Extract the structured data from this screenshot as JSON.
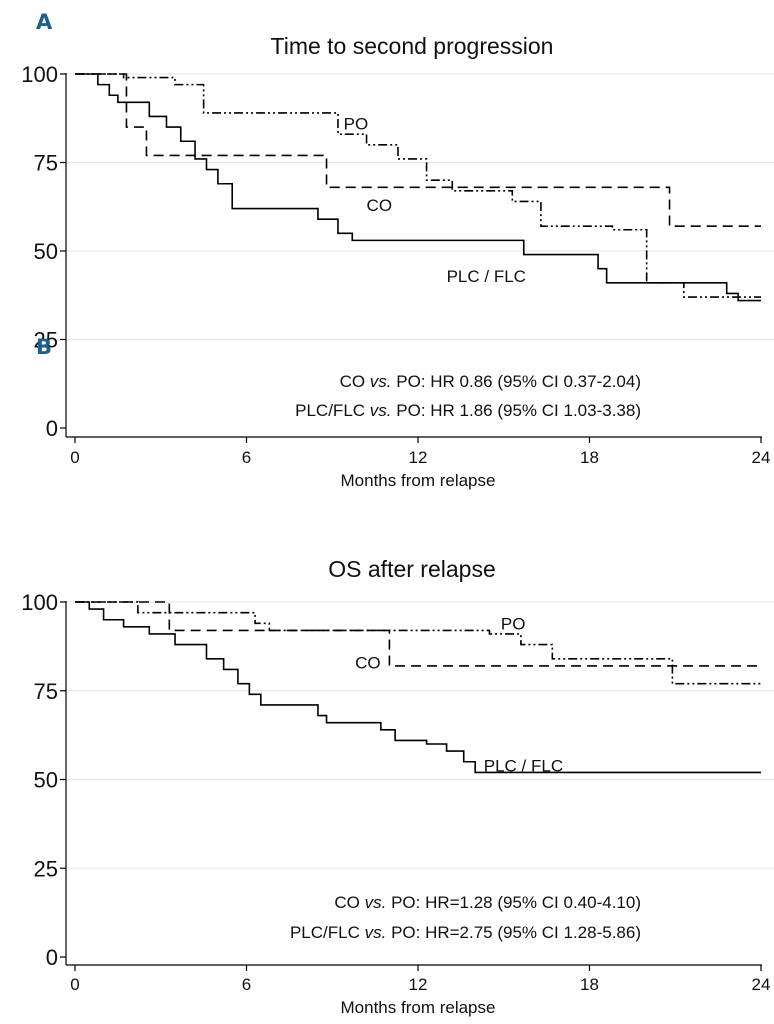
{
  "chart_data": [
    {
      "type": "line",
      "panel_label": "A",
      "title": "Time to second progression",
      "xlabel": "Months from relapse",
      "ylabel": "",
      "xlim": [
        0,
        24
      ],
      "ylim": [
        0,
        100
      ],
      "xticks": [
        0,
        6,
        12,
        18,
        24
      ],
      "yticks": [
        0,
        25,
        50,
        75,
        100
      ],
      "grid": true,
      "series": [
        {
          "name": "PO",
          "style": "dashdot",
          "x": [
            0,
            1.7,
            3.5,
            4.5,
            9.2,
            10.2,
            11.3,
            12.3,
            13.2,
            15.3,
            16.3,
            18.8,
            20.0,
            21.3,
            24
          ],
          "y": [
            100,
            99,
            97,
            89,
            83,
            80,
            76,
            70,
            67,
            64,
            57,
            56,
            41,
            37,
            37
          ]
        },
        {
          "name": "CO",
          "style": "dashed",
          "x": [
            0,
            1.8,
            2.5,
            8.8,
            20.8,
            24
          ],
          "y": [
            100,
            85,
            77,
            68,
            57,
            57
          ]
        },
        {
          "name": "PLC / FLC",
          "style": "solid",
          "x": [
            0,
            0.8,
            1.2,
            1.5,
            2.6,
            3.2,
            3.7,
            4.2,
            4.6,
            5.0,
            5.5,
            8.5,
            9.2,
            9.7,
            15.7,
            18.3,
            18.6,
            22.8,
            23.2,
            24
          ],
          "y": [
            100,
            97,
            94,
            92,
            88,
            85,
            81,
            76,
            73,
            69,
            62,
            59,
            55,
            53,
            49,
            45,
            41,
            38,
            36,
            36
          ]
        }
      ],
      "curve_labels": [
        {
          "series": "PO",
          "text": "PO",
          "x": 9.4,
          "y": 86
        },
        {
          "series": "CO",
          "text": "CO",
          "x": 10.2,
          "y": 63
        },
        {
          "series": "PLC / FLC",
          "text": "PLC / FLC",
          "x": 13.0,
          "y": 43
        }
      ],
      "annotations": [
        {
          "comparison_a": "CO",
          "vs": "vs.",
          "comparison_b": "PO",
          "stat": ": HR 0.86 (95% CI 0.37-2.04)"
        },
        {
          "comparison_a": "PLC/FLC",
          "vs": "vs.",
          "comparison_b": "PO",
          "stat": ": HR 1.86 (95% CI 1.03-3.38)"
        }
      ]
    },
    {
      "type": "line",
      "panel_label": "B",
      "title": "OS after relapse",
      "xlabel": "Months from relapse",
      "ylabel": "",
      "xlim": [
        0,
        24
      ],
      "ylim": [
        0,
        100
      ],
      "xticks": [
        0,
        6,
        12,
        18,
        24
      ],
      "yticks": [
        0,
        25,
        50,
        75,
        100
      ],
      "grid": true,
      "series": [
        {
          "name": "PO",
          "style": "dashdot",
          "x": [
            0,
            2.2,
            6.3,
            6.8,
            14.5,
            15.6,
            16.7,
            20.9,
            24
          ],
          "y": [
            100,
            97,
            94,
            92,
            91,
            88,
            84,
            77,
            77
          ]
        },
        {
          "name": "CO",
          "style": "dashed",
          "x": [
            0,
            3.3,
            11.0,
            24
          ],
          "y": [
            100,
            92,
            82,
            82
          ]
        },
        {
          "name": "PLC / FLC",
          "style": "solid",
          "x": [
            0,
            0.5,
            1.0,
            1.7,
            2.6,
            3.5,
            4.6,
            5.2,
            5.7,
            6.1,
            6.5,
            8.5,
            8.8,
            10.7,
            11.2,
            12.3,
            13.0,
            13.6,
            14.0,
            24
          ],
          "y": [
            100,
            98,
            95,
            93,
            91,
            88,
            84,
            81,
            77,
            74,
            71,
            68,
            66,
            64,
            61,
            60,
            58,
            55,
            52,
            52
          ]
        }
      ],
      "curve_labels": [
        {
          "series": "PO",
          "text": "PO",
          "x": 14.9,
          "y": 94
        },
        {
          "series": "CO",
          "text": "CO",
          "x": 9.8,
          "y": 83
        },
        {
          "series": "PLC / FLC",
          "text": "PLC / FLC",
          "x": 14.3,
          "y": 54
        }
      ],
      "annotations": [
        {
          "comparison_a": "CO",
          "vs": "vs.",
          "comparison_b": "PO",
          "stat": ": HR=1.28 (95% CI 0.40-4.10)"
        },
        {
          "comparison_a": "PLC/FLC",
          "vs": "vs.",
          "comparison_b": "PO",
          "stat": ": HR=2.75 (95% CI 1.28-5.86)"
        }
      ]
    }
  ]
}
